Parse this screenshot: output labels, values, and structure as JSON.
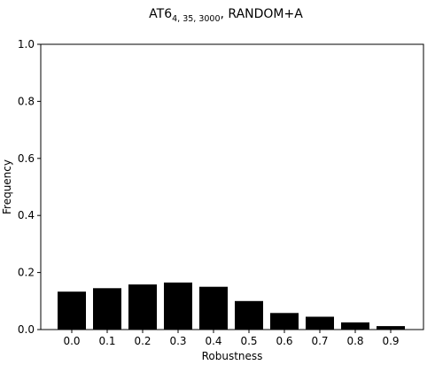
{
  "chart_data": {
    "type": "bar",
    "title": {
      "main": "AT6",
      "subscript": "4, 35, 3000",
      "suffix": ", RANDOM+A"
    },
    "xlabel": "Robustness",
    "ylabel": "Frequency",
    "categories": [
      "0.0",
      "0.1",
      "0.2",
      "0.3",
      "0.4",
      "0.5",
      "0.6",
      "0.7",
      "0.8",
      "0.9"
    ],
    "values": [
      0.133,
      0.145,
      0.158,
      0.165,
      0.15,
      0.1,
      0.058,
      0.045,
      0.025,
      0.012
    ],
    "yticks": [
      "0.0",
      "0.2",
      "0.4",
      "0.6",
      "0.8",
      "1.0"
    ],
    "ylim": [
      0,
      1.0
    ],
    "bar_color": "#000000",
    "grid": false,
    "legend": "none"
  }
}
